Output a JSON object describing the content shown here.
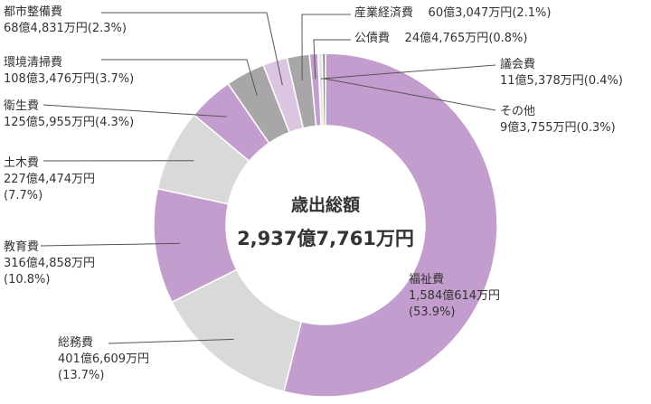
{
  "chart_data": {
    "type": "pie",
    "donut": true,
    "center_title": "歳出総額",
    "center_total": "2,937億7,761万円",
    "slices": [
      {
        "name": "福祉費",
        "amount": "1,584億614万円",
        "percent": 53.9,
        "percent_text": "(53.9%)",
        "color": "#c39dcd"
      },
      {
        "name": "総務費",
        "amount": "401億6,609万円",
        "percent": 13.7,
        "percent_text": "(13.7%)",
        "color": "#d9d9d9"
      },
      {
        "name": "教育費",
        "amount": "316億4,858万円",
        "percent": 10.8,
        "percent_text": "(10.8%)",
        "color": "#c39dcd"
      },
      {
        "name": "土木費",
        "amount": "227億4,474万円",
        "percent": 7.7,
        "percent_text": "(7.7%)",
        "color": "#d9d9d9"
      },
      {
        "name": "衛生費",
        "amount": "125億5,955万円",
        "percent": 4.3,
        "percent_text": "(4.3%)",
        "color": "#c39dcd"
      },
      {
        "name": "環境清掃費",
        "amount": "108億3,476万円",
        "percent": 3.7,
        "percent_text": "(3.7%)",
        "color": "#a9a6a9"
      },
      {
        "name": "都市整備費",
        "amount": "68億4,831万円",
        "percent": 2.3,
        "percent_text": "(2.3%)",
        "color": "#dcc5e0"
      },
      {
        "name": "産業経済費",
        "amount": "60億3,047万円",
        "percent": 2.1,
        "percent_text": "(2.1%)",
        "color": "#a9a6a9"
      },
      {
        "name": "公債費",
        "amount": "24億4,765万円",
        "percent": 0.8,
        "percent_text": "(0.8%)",
        "color": "#c39dcd"
      },
      {
        "name": "議会費",
        "amount": "11億5,378万円",
        "percent": 0.4,
        "percent_text": "(0.4%)",
        "color": "#e3e3e3"
      },
      {
        "name": "その他",
        "amount": "9億3,755万円",
        "percent": 0.3,
        "percent_text": "(0.3%)",
        "color": "#8e8a8e"
      }
    ]
  }
}
